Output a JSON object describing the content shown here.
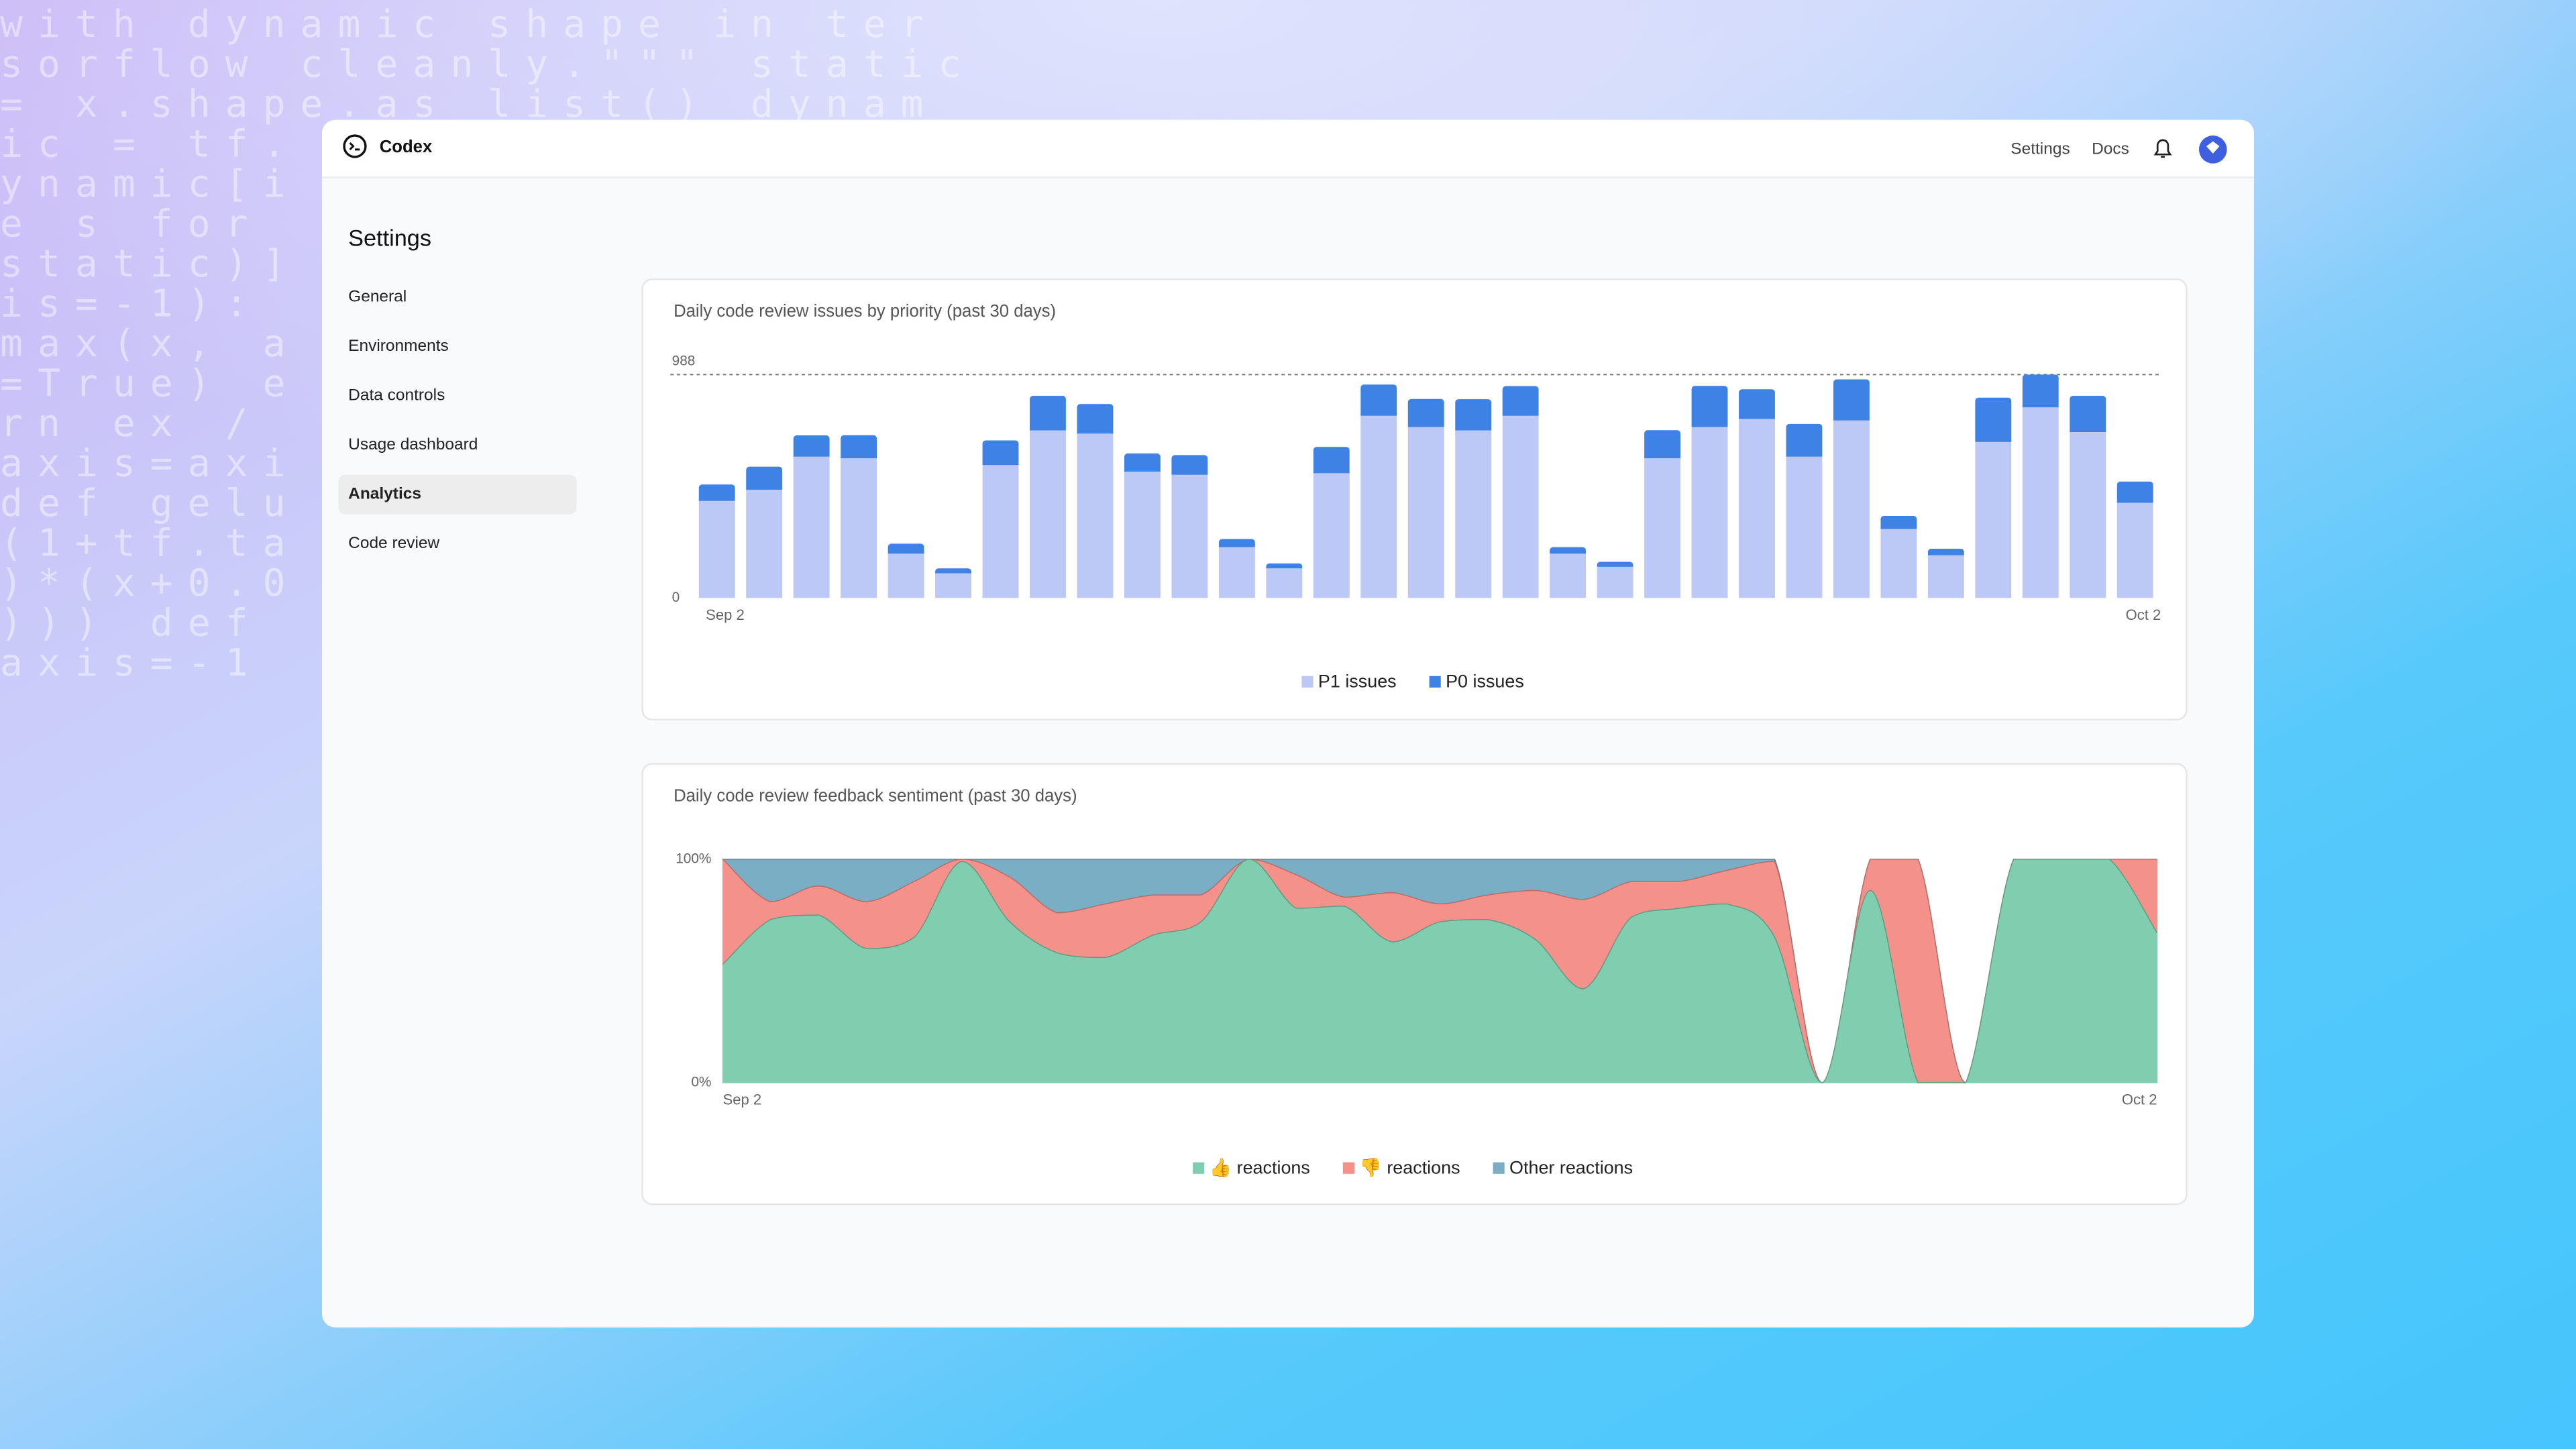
{
  "background_code": [
    "with dynamic shape in ter",
    "sorflow cleanly.\"\"\" static",
    "= x.shape.as list() dynam",
    "ic = tf.",
    "ynamic[i",
    "e s for",
    "static)]",
    "is=-1):",
    "max(x, a",
    "=True) e",
    "rn ex /",
    "axis=axi",
    "def gelu",
    "(1+tf.ta",
    ")*(x+0.0",
    "))) def",
    " axis=-1"
  ],
  "header": {
    "app_name": "Codex",
    "links": [
      "Settings",
      "Docs"
    ]
  },
  "sidebar": {
    "title": "Settings",
    "items": [
      "General",
      "Environments",
      "Data controls",
      "Usage dashboard",
      "Analytics",
      "Code review"
    ],
    "active": 4
  },
  "chart_data": [
    {
      "type": "bar",
      "stacked": true,
      "title": "Daily code review issues by priority (past 30 days)",
      "categories": [
        "Sep 2",
        null,
        null,
        null,
        null,
        null,
        null,
        null,
        null,
        null,
        null,
        null,
        null,
        null,
        null,
        null,
        null,
        null,
        null,
        null,
        null,
        null,
        null,
        null,
        null,
        null,
        null,
        null,
        null,
        null,
        "Oct 2"
      ],
      "series": [
        {
          "name": "P1 issues",
          "color": "#bcc8f5",
          "values": [
            429,
            479,
            625,
            618,
            196,
            109,
            588,
            741,
            727,
            559,
            545,
            225,
            131,
            552,
            806,
            756,
            741,
            806,
            196,
            138,
            618,
            756,
            792,
            625,
            785,
            305,
            189,
            690,
            843,
            734,
            421
          ]
        },
        {
          "name": "P0 issues",
          "color": "#3f82e6",
          "values": [
            73,
            102,
            94,
            102,
            44,
            22,
            109,
            153,
            131,
            80,
            87,
            36,
            22,
            116,
            138,
            124,
            138,
            131,
            29,
            22,
            124,
            182,
            131,
            145,
            182,
            58,
            29,
            196,
            145,
            160,
            94
          ]
        }
      ],
      "ylim": [
        0,
        988
      ],
      "yticks": [
        0,
        988
      ],
      "grid": "dashed",
      "legend": "bottom"
    },
    {
      "type": "area",
      "stacked": true,
      "title": "Daily code review feedback sentiment (past 30 days)",
      "categories": [
        "Sep 2",
        null,
        null,
        null,
        null,
        null,
        null,
        null,
        null,
        null,
        null,
        null,
        null,
        null,
        null,
        null,
        null,
        null,
        null,
        null,
        null,
        null,
        null,
        null,
        null,
        null,
        null,
        null,
        null,
        null,
        "Oct 2"
      ],
      "series": [
        {
          "name": "👍 reactions",
          "color": "#80cdb0",
          "values": [
            53,
            73,
            75,
            60,
            65,
            99,
            72,
            58,
            56,
            66,
            72,
            100,
            78,
            79,
            63,
            72,
            73,
            64,
            42,
            74,
            78,
            80,
            65,
            0,
            86,
            0,
            0,
            100,
            100,
            100,
            67
          ]
        },
        {
          "name": "👎 reactions",
          "color": "#f4918a",
          "values": [
            47,
            8,
            13,
            21,
            25,
            1,
            20,
            18,
            24,
            18,
            12,
            0,
            15,
            4,
            22,
            8,
            11,
            22,
            40,
            16,
            12,
            15,
            34,
            0,
            14,
            100,
            0,
            0,
            0,
            0,
            33
          ]
        },
        {
          "name": "Other reactions",
          "color": "#7aaec4",
          "values": [
            0,
            19,
            12,
            19,
            10,
            0,
            8,
            24,
            20,
            16,
            16,
            0,
            7,
            17,
            15,
            20,
            16,
            14,
            18,
            10,
            10,
            5,
            1,
            0,
            0,
            0,
            0,
            0,
            0,
            0,
            0
          ]
        }
      ],
      "ylim": [
        0,
        100
      ],
      "yticks": [
        {
          "value": 0,
          "label": "0%"
        },
        {
          "value": 100,
          "label": "100%"
        }
      ],
      "grid": false,
      "legend": "bottom"
    }
  ]
}
